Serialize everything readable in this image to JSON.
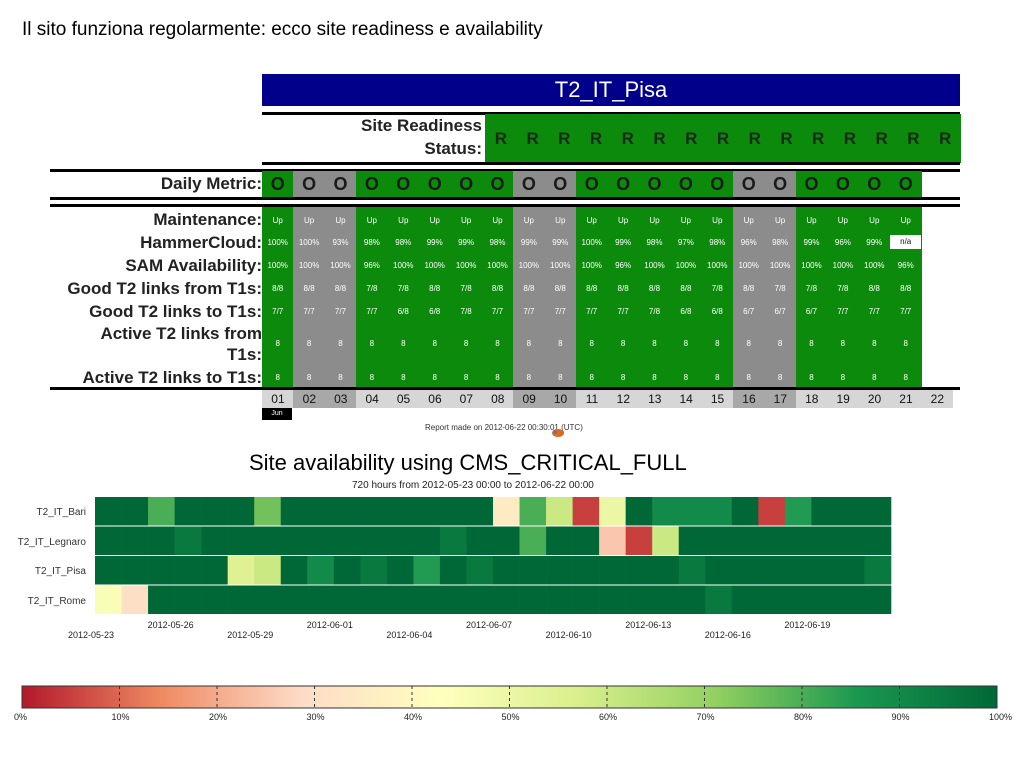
{
  "slide_title": "Il sito funziona regolarmente: ecco site readiness e availability",
  "site_name": "T2_IT_Pisa",
  "readiness": {
    "label_line1": "Site Readiness",
    "label_line2": "Status:",
    "status_symbol": "R",
    "count": 15
  },
  "daily_metric": {
    "label": "Daily Metric:",
    "values": [
      "O",
      "O",
      "O",
      "O",
      "O",
      "O",
      "O",
      "O",
      "O",
      "O",
      "O",
      "O",
      "O",
      "O",
      "O",
      "O",
      "O",
      "O",
      "O",
      "O",
      "O"
    ]
  },
  "metrics": {
    "labels": {
      "maintenance": "Maintenance:",
      "hammercloud": "HammerCloud:",
      "sam": "SAM Availability:",
      "links_from_line": "Good T2 links from T1s:",
      "links_to_line": "Good T2 links to T1s:",
      "active_from_line1": "Active T2 links from",
      "active_from_line2": "T1s:",
      "active_to_line": "Active T2 links to T1s:"
    },
    "maintenance": [
      "Up",
      "Up",
      "Up",
      "Up",
      "Up",
      "Up",
      "Up",
      "Up",
      "Up",
      "Up",
      "Up",
      "Up",
      "Up",
      "Up",
      "Up",
      "Up",
      "Up",
      "Up",
      "Up",
      "Up",
      "Up"
    ],
    "hammercloud": [
      "100%",
      "100%",
      "93%",
      "98%",
      "98%",
      "99%",
      "99%",
      "98%",
      "99%",
      "99%",
      "100%",
      "99%",
      "98%",
      "97%",
      "98%",
      "96%",
      "98%",
      "99%",
      "96%",
      "99%",
      "n/a"
    ],
    "sam": [
      "100%",
      "100%",
      "100%",
      "96%",
      "100%",
      "100%",
      "100%",
      "100%",
      "100%",
      "100%",
      "100%",
      "96%",
      "100%",
      "100%",
      "100%",
      "100%",
      "100%",
      "100%",
      "100%",
      "100%",
      "96%"
    ],
    "links_from": [
      "8/8",
      "8/8",
      "8/8",
      "7/8",
      "7/8",
      "8/8",
      "7/8",
      "8/8",
      "8/8",
      "8/8",
      "8/8",
      "8/8",
      "8/8",
      "8/8",
      "7/8",
      "8/8",
      "7/8",
      "7/8",
      "7/8",
      "8/8",
      "8/8"
    ],
    "links_to": [
      "7/7",
      "7/7",
      "7/7",
      "7/7",
      "6/8",
      "6/8",
      "7/8",
      "7/7",
      "7/7",
      "7/7",
      "7/7",
      "7/7",
      "7/8",
      "6/8",
      "6/8",
      "6/7",
      "6/7",
      "6/7",
      "7/7",
      "7/7",
      "7/7"
    ],
    "active_from": [
      "8",
      "8",
      "8",
      "8",
      "8",
      "8",
      "8",
      "8",
      "8",
      "8",
      "8",
      "8",
      "8",
      "8",
      "8",
      "8",
      "8",
      "8",
      "8",
      "8",
      "8"
    ],
    "active_to": [
      "8",
      "8",
      "8",
      "8",
      "8",
      "8",
      "8",
      "8",
      "8",
      "8",
      "8",
      "8",
      "8",
      "8",
      "8",
      "8",
      "8",
      "8",
      "8",
      "8",
      "8"
    ]
  },
  "days": [
    "01",
    "02",
    "03",
    "04",
    "05",
    "06",
    "07",
    "08",
    "09",
    "10",
    "11",
    "12",
    "13",
    "14",
    "15",
    "16",
    "17",
    "18",
    "19",
    "20",
    "21",
    "22"
  ],
  "weekend_days": [
    "02",
    "03",
    "09",
    "10",
    "16",
    "17"
  ],
  "month_label": "Jun",
  "report_text": "Report made on 2012-06-22 00:30:01 (UTC)",
  "colors": {
    "header_blue": "#00008b",
    "ok_green": "#0c8a0c",
    "weekend_gray": "#8c8c8c",
    "daynum_bg": "#d6d6d6"
  },
  "chart_data": {
    "type": "heatmap",
    "title": "Site availability using CMS_CRITICAL_FULL",
    "subtitle": "720 hours from 2012-05-23 00:00 to 2012-06-22 00:00",
    "rows": [
      "T2_IT_Bari",
      "T2_IT_Legnaro",
      "T2_IT_Pisa",
      "T2_IT_Rome"
    ],
    "x_ticks": [
      "2012-05-23",
      "2012-05-26",
      "2012-05-29",
      "2012-06-01",
      "2012-06-04",
      "2012-06-07",
      "2012-06-10",
      "2012-06-13",
      "2012-06-16",
      "2012-06-19"
    ],
    "n_columns": 30,
    "values": [
      [
        100,
        100,
        80,
        100,
        100,
        100,
        75,
        100,
        100,
        100,
        100,
        100,
        100,
        100,
        100,
        35,
        80,
        60,
        5,
        50,
        100,
        90,
        90,
        90,
        100,
        5,
        85,
        100,
        100,
        100
      ],
      [
        100,
        100,
        100,
        95,
        100,
        100,
        100,
        100,
        100,
        100,
        100,
        100,
        100,
        95,
        100,
        100,
        80,
        100,
        100,
        25,
        5,
        60,
        100,
        100,
        100,
        100,
        100,
        100,
        100,
        100
      ],
      [
        100,
        100,
        100,
        100,
        100,
        55,
        60,
        100,
        90,
        100,
        95,
        100,
        85,
        100,
        95,
        100,
        100,
        100,
        100,
        100,
        100,
        100,
        95,
        100,
        100,
        100,
        100,
        100,
        100,
        95
      ],
      [
        45,
        30,
        100,
        100,
        100,
        100,
        100,
        100,
        100,
        100,
        100,
        100,
        100,
        100,
        100,
        100,
        100,
        100,
        100,
        100,
        100,
        100,
        100,
        95,
        100,
        100,
        100,
        100,
        100,
        100
      ]
    ],
    "colorbar_ticks": [
      "0%",
      "10%",
      "20%",
      "30%",
      "40%",
      "50%",
      "60%",
      "70%",
      "80%",
      "90%",
      "100%"
    ],
    "color_stops": [
      "#b2182b",
      "#ef8a62",
      "#fddbc7",
      "#ffffbf",
      "#d9ef8b",
      "#91cf60",
      "#1a9850",
      "#006837"
    ],
    "ylim": [
      0,
      100
    ]
  }
}
